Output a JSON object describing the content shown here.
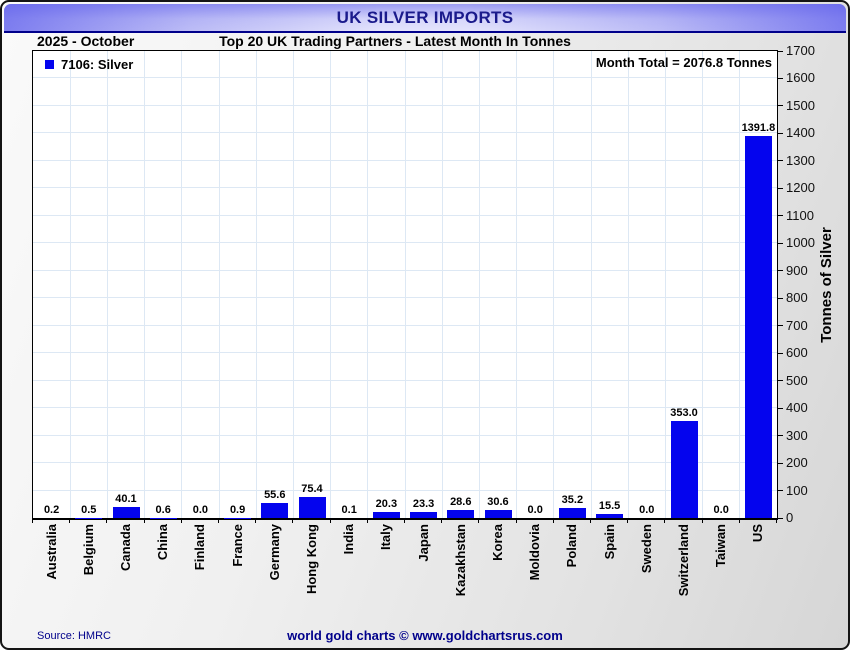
{
  "header": {
    "title": "UK SILVER IMPORTS"
  },
  "subheader": {
    "period": "2025 - October",
    "subtitle": "Top 20 UK Trading Partners - Latest Month In Tonnes"
  },
  "legend": {
    "label": "7106: Silver",
    "marker_color": "#0404ee"
  },
  "annotation": {
    "month_total": "Month Total = 2076.8 Tonnes"
  },
  "chart_data": {
    "type": "bar",
    "title": "UK SILVER IMPORTS",
    "subtitle": "Top 20 UK Trading Partners - Latest Month In Tonnes",
    "period": "2025 - October",
    "categories": [
      "Australia",
      "Belgium",
      "Canada",
      "China",
      "Finland",
      "France",
      "Germany",
      "Hong Kong",
      "India",
      "Italy",
      "Japan",
      "Kazakhstan",
      "Korea",
      "Moldovia",
      "Poland",
      "Spain",
      "Sweden",
      "Switzerland",
      "Taiwan",
      "US"
    ],
    "values": [
      0.2,
      0.5,
      40.1,
      0.6,
      0.0,
      0.9,
      55.6,
      75.4,
      0.1,
      20.3,
      23.3,
      28.6,
      30.6,
      0.0,
      35.2,
      15.5,
      0.0,
      353.0,
      0.0,
      1391.8
    ],
    "value_label_decimals": 1,
    "xlabel": "",
    "ylabel": "Tonnes of Silver",
    "ylim": [
      0,
      1700
    ],
    "yticks": [
      0,
      100,
      200,
      300,
      400,
      500,
      600,
      700,
      800,
      900,
      1000,
      1100,
      1200,
      1300,
      1400,
      1500,
      1600,
      1700
    ],
    "grid": true,
    "legend_position": "upper-left",
    "bar_color": "#0404ee",
    "gridline_color": "#dde8f4"
  },
  "footer": {
    "source": "Source: HMRC",
    "credit": "world gold charts © www.goldchartsrus.com"
  },
  "colors": {
    "title_text": "#1a1a8c",
    "header_band_dark": "#7d7def",
    "header_band_light": "#e4e4fc",
    "footer_text": "#00008b",
    "plot_background": "#ffffff",
    "bar": "#0404ee"
  }
}
